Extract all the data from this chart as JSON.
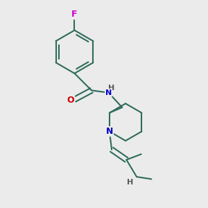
{
  "background_color": "#ebebeb",
  "bond_color": "#2d6b5a",
  "atom_colors": {
    "F": "#cc00cc",
    "O": "#cc0000",
    "N": "#0000cc",
    "H": "#555555",
    "C": "#2d6b5a"
  },
  "figsize": [
    3.0,
    3.0
  ],
  "dpi": 100
}
